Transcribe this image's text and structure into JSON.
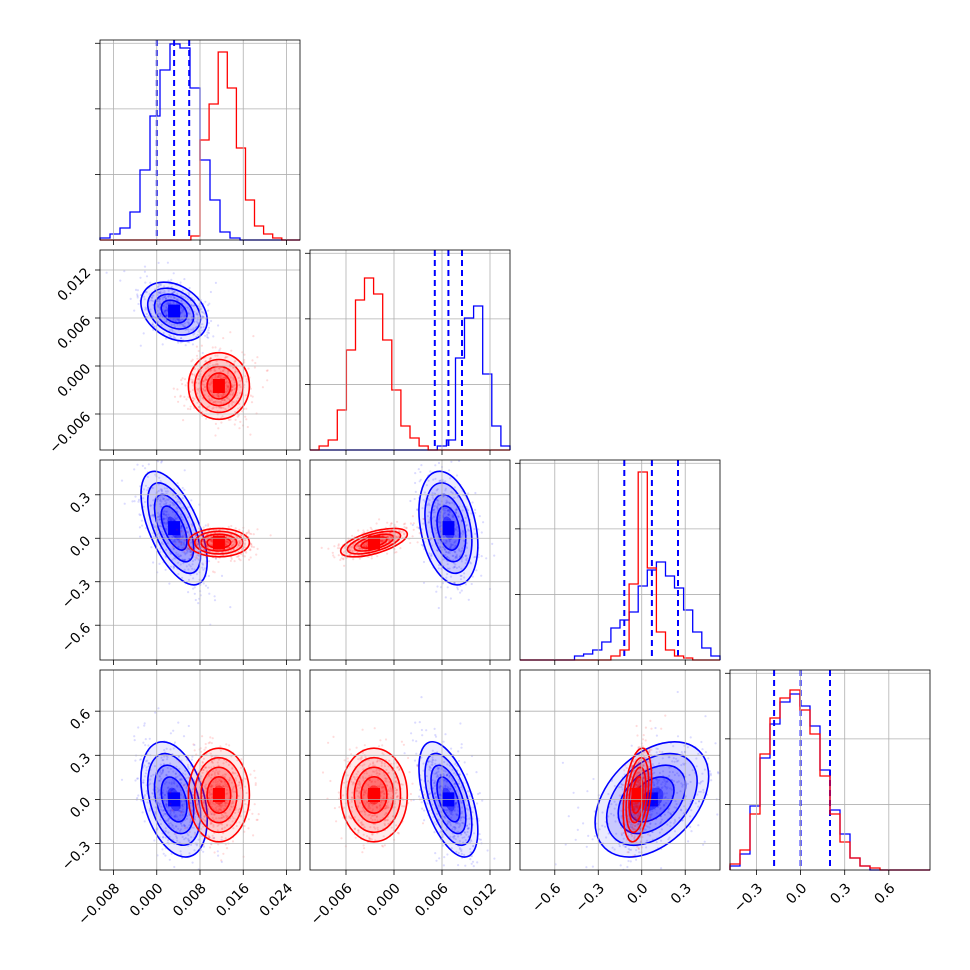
{
  "chart_data": {
    "type": "corner",
    "grid": true,
    "parameters": [
      {
        "range": [
          -0.0105,
          0.0265
        ],
        "ticks": [
          -0.008,
          0.0,
          0.008,
          0.016,
          0.024
        ],
        "tick_labels": [
          "−0.008",
          "0.000",
          "0.008",
          "0.016",
          "0.024"
        ]
      },
      {
        "range": [
          -0.0105,
          0.0145
        ],
        "ticks": [
          -0.006,
          0.0,
          0.006,
          0.012
        ],
        "tick_labels": [
          "−0.006",
          "0.000",
          "0.006",
          "0.012"
        ]
      },
      {
        "range": [
          -0.84,
          0.54
        ],
        "ticks": [
          -0.6,
          -0.3,
          0.0,
          0.3
        ],
        "tick_labels": [
          "−0.6",
          "−0.3",
          "0.0",
          "0.3"
        ]
      },
      {
        "range": [
          -0.48,
          0.88
        ],
        "ticks": [
          -0.3,
          0.0,
          0.3,
          0.6
        ],
        "tick_labels": [
          "−0.3",
          "0.0",
          "0.3",
          "0.6"
        ]
      }
    ],
    "series": [
      {
        "color": "#0000ff",
        "means": [
          0.0032,
          0.0068,
          0.07,
          0.0
        ],
        "stds": [
          0.0025,
          0.0015,
          0.16,
          0.16
        ],
        "correlations": [
          [
            0,
            1,
            -0.3
          ],
          [
            0,
            2,
            -0.6
          ],
          [
            0,
            3,
            -0.35
          ],
          [
            1,
            2,
            -0.3
          ],
          [
            1,
            3,
            -0.55
          ],
          [
            2,
            3,
            0.4
          ]
        ],
        "quantiles": [
          [
            0.0,
            0.0032,
            0.006
          ],
          [
            0.0051,
            0.0068,
            0.0085
          ],
          [
            -0.12,
            0.07,
            0.25
          ],
          [
            -0.18,
            0.0,
            0.2
          ]
        ],
        "histograms": [
          [
            0.01,
            0.03,
            0.06,
            0.14,
            0.35,
            0.62,
            0.85,
            0.98,
            0.96,
            0.76,
            0.4,
            0.2,
            0.04,
            0.01,
            0.0,
            0.0,
            0.0,
            0.0,
            0.0,
            0.0
          ],
          [
            0.0,
            0.0,
            0.0,
            0.0,
            0.0,
            0.0,
            0.0,
            0.0,
            0.0,
            0.0,
            0.0,
            0.0,
            0.0,
            0.0,
            0.02,
            0.05,
            0.46,
            0.66,
            0.72,
            0.38,
            0.12,
            0.02
          ],
          [
            0.0,
            0.0,
            0.0,
            0.0,
            0.0,
            0.0,
            0.02,
            0.03,
            0.05,
            0.09,
            0.16,
            0.2,
            0.24,
            0.37,
            0.45,
            0.49,
            0.42,
            0.36,
            0.25,
            0.14,
            0.06,
            0.02
          ],
          [
            0.02,
            0.08,
            0.32,
            0.56,
            0.73,
            0.84,
            0.88,
            0.82,
            0.72,
            0.5,
            0.3,
            0.18,
            0.06,
            0.02,
            0.0,
            0.0,
            0.0,
            0.0,
            0.0,
            0.0
          ]
        ]
      },
      {
        "color": "#ff0000",
        "means": [
          0.0115,
          -0.0025,
          -0.03,
          0.03
        ],
        "stds": [
          0.0023,
          0.0017,
          0.04,
          0.13
        ],
        "correlations": [
          [
            0,
            1,
            0.0
          ],
          [
            0,
            2,
            0.0
          ],
          [
            0,
            3,
            0.0
          ],
          [
            1,
            2,
            0.6
          ],
          [
            1,
            3,
            0.0
          ],
          [
            2,
            3,
            0.35
          ]
        ],
        "histograms": [
          [
            0.0,
            0.0,
            0.0,
            0.0,
            0.0,
            0.0,
            0.0,
            0.0,
            0.0,
            0.0,
            0.02,
            0.5,
            0.68,
            0.94,
            0.76,
            0.46,
            0.2,
            0.07,
            0.03,
            0.01,
            0.0,
            0.0
          ],
          [
            0.0,
            0.02,
            0.05,
            0.2,
            0.5,
            0.75,
            0.86,
            0.78,
            0.55,
            0.3,
            0.12,
            0.06,
            0.02,
            0.0,
            0.0,
            0.0,
            0.0,
            0.0,
            0.0,
            0.0,
            0.0,
            0.0
          ],
          [
            0.0,
            0.0,
            0.0,
            0.0,
            0.0,
            0.0,
            0.0,
            0.0,
            0.0,
            0.0,
            0.02,
            0.05,
            0.38,
            0.94,
            0.46,
            0.14,
            0.05,
            0.02,
            0.01,
            0.0,
            0.0,
            0.0
          ],
          [
            0.03,
            0.1,
            0.28,
            0.58,
            0.76,
            0.86,
            0.9,
            0.8,
            0.68,
            0.47,
            0.28,
            0.14,
            0.06,
            0.02,
            0.01,
            0.0,
            0.0,
            0.0,
            0.0,
            0.0
          ]
        ]
      }
    ]
  }
}
